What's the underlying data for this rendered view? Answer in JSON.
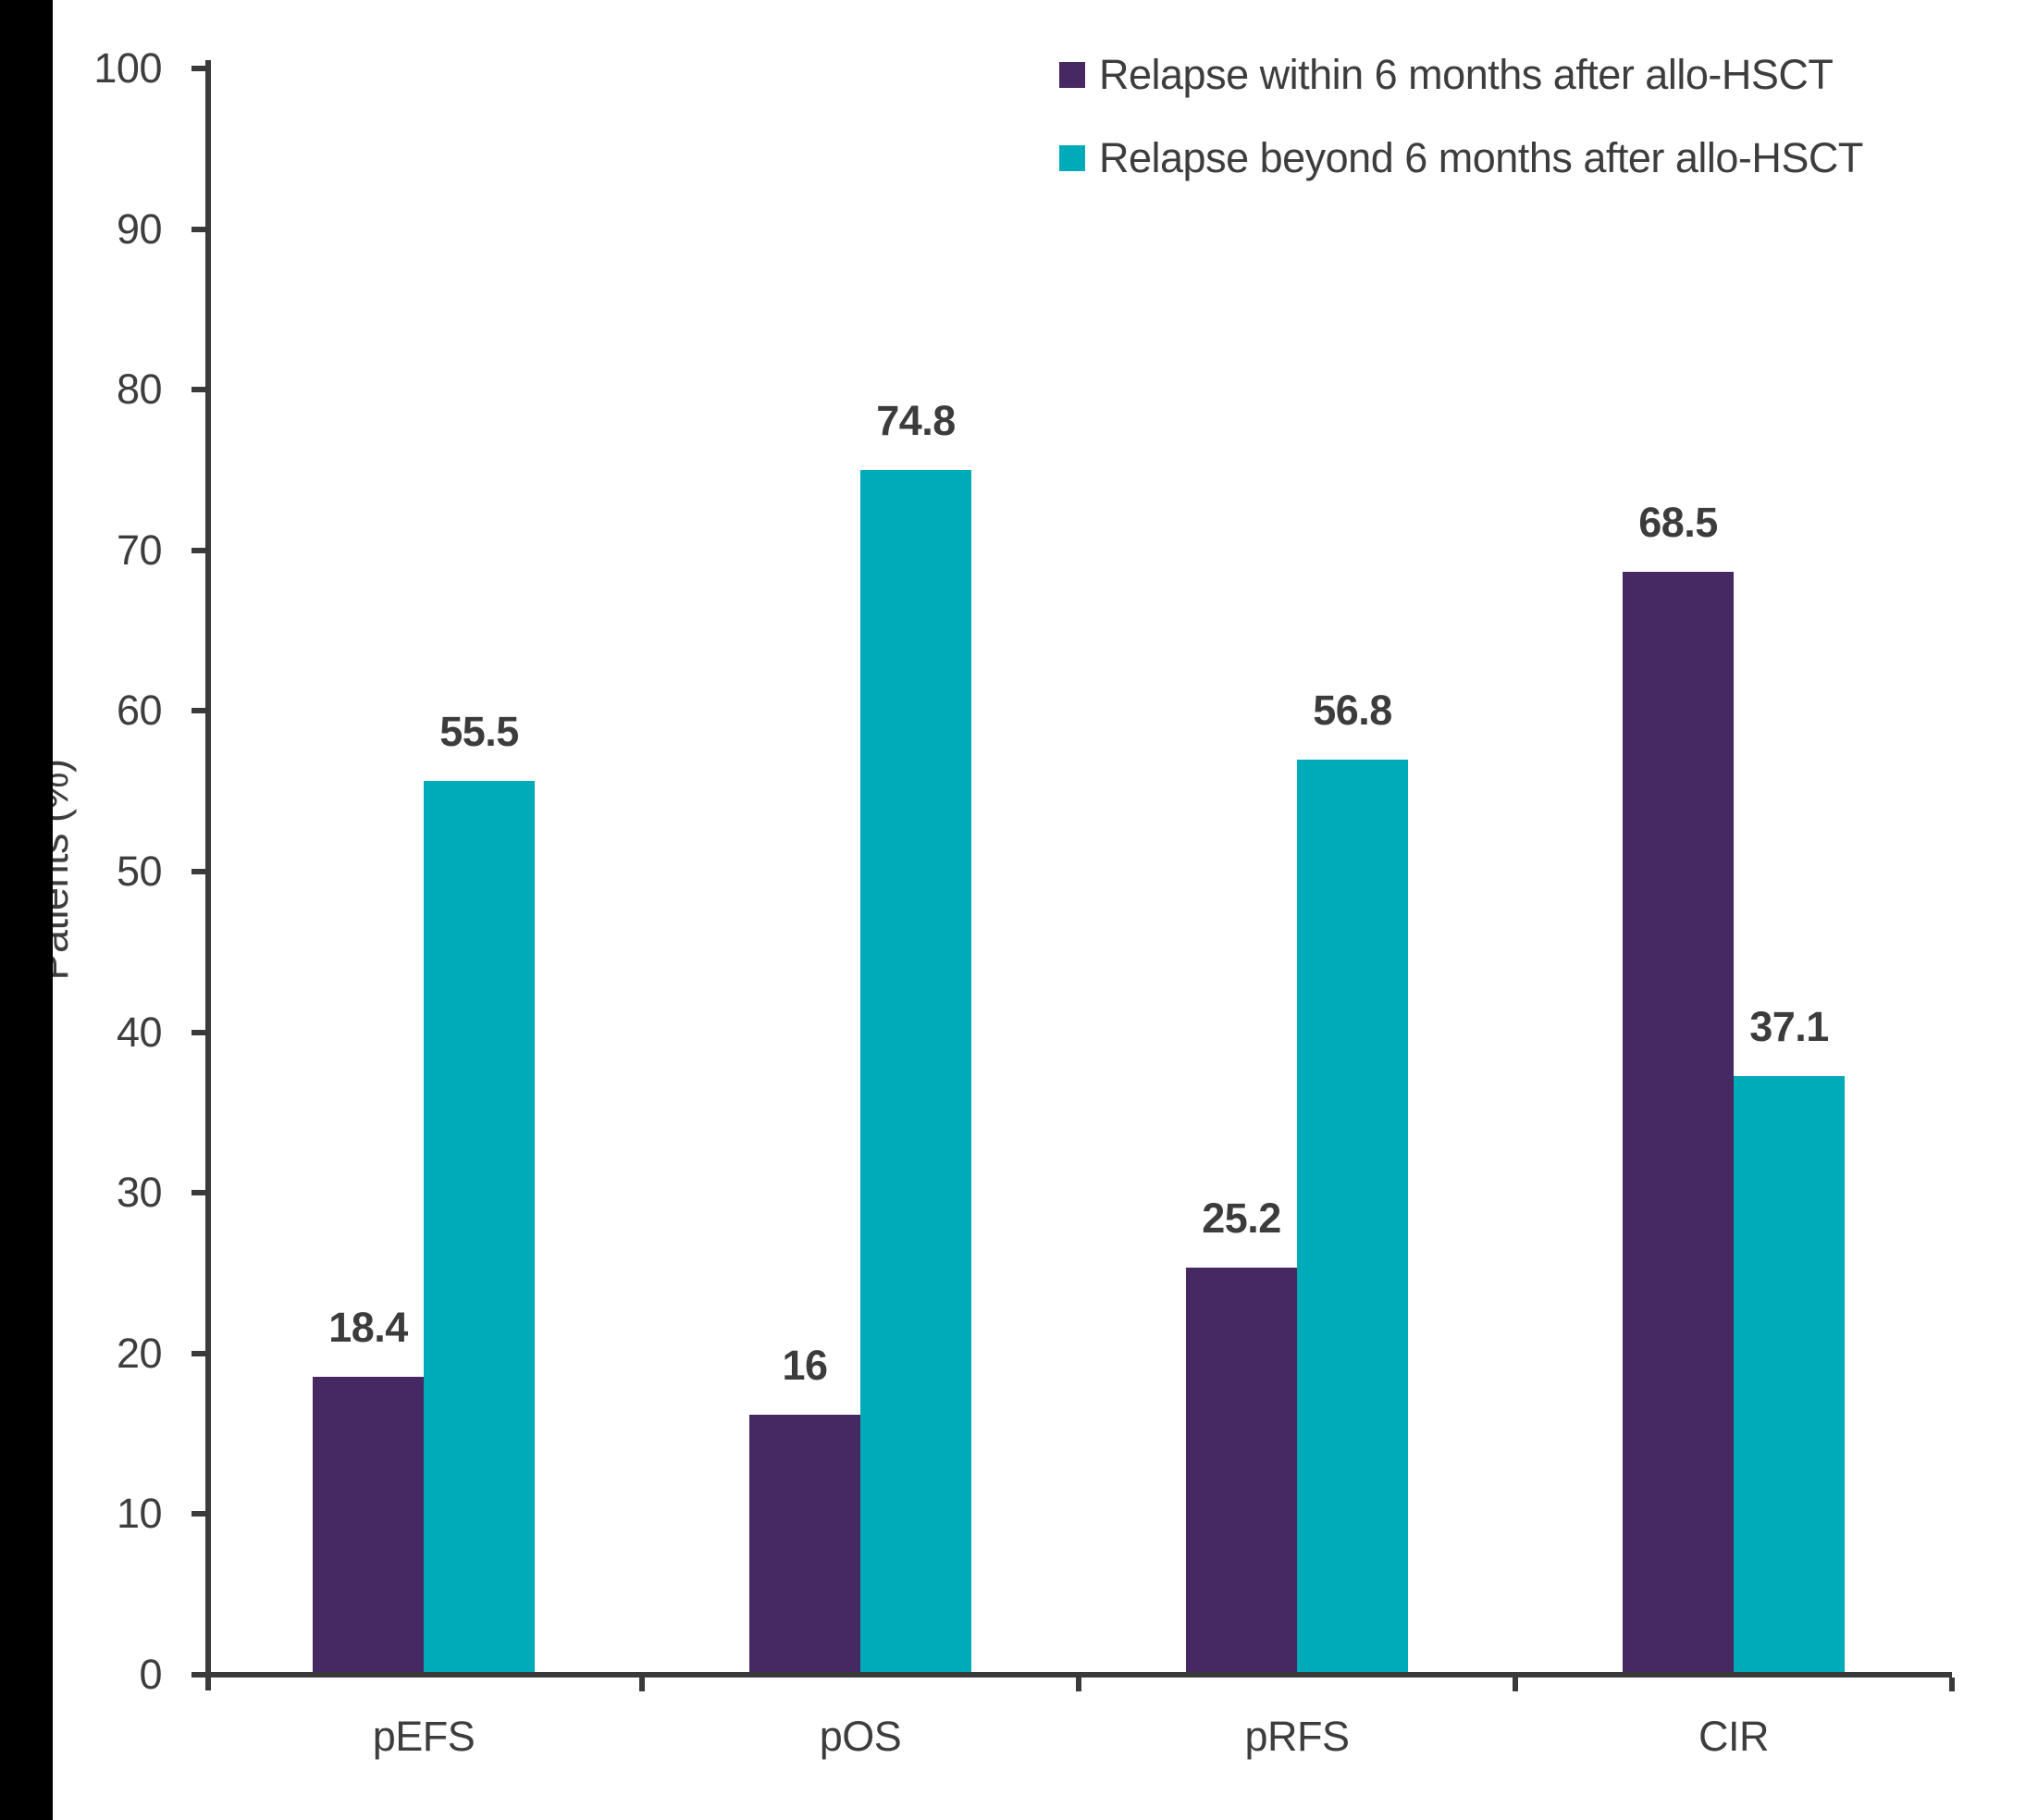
{
  "chart_data": {
    "type": "bar",
    "categories": [
      "pEFS",
      "pOS",
      "pRFS",
      "CIR"
    ],
    "series": [
      {
        "name": "Relapse within 6 months after allo-HSCT",
        "color": "#462862",
        "values": [
          18.4,
          16,
          25.2,
          68.5
        ],
        "value_labels": [
          "18.4",
          "16",
          "25.2",
          "68.5"
        ]
      },
      {
        "name": "Relapse beyond 6 months after allo-HSCT",
        "color": "#00abb9",
        "values": [
          55.5,
          74.8,
          56.8,
          37.1
        ],
        "value_labels": [
          "55.5",
          "74.8",
          "56.8",
          "37.1"
        ]
      }
    ],
    "title": "",
    "xlabel": "",
    "ylabel": "Patients (%)",
    "ylim": [
      0,
      100
    ],
    "yticks": [
      0,
      10,
      20,
      30,
      40,
      50,
      60,
      70,
      80,
      90,
      100
    ],
    "ytick_labels": [
      "0",
      "10",
      "20",
      "30",
      "40",
      "50",
      "60",
      "70",
      "80",
      "90",
      "100"
    ],
    "grid": false,
    "legend_position": "top-right",
    "colors": {
      "series_within": "#462862",
      "series_beyond": "#00abb9",
      "text": "#3d3d3d",
      "axis": "#3a3a3a",
      "left_band": "#000000",
      "background": "#ffffff"
    }
  }
}
